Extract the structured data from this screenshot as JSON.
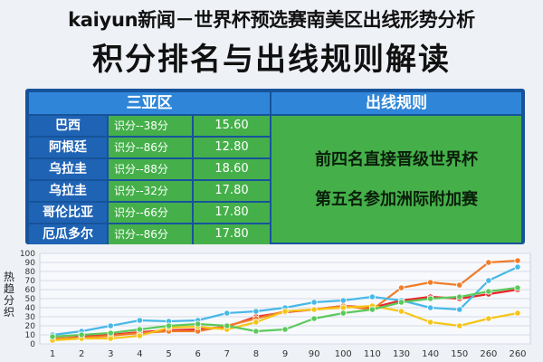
{
  "header": {
    "title_line1": "kaiyun新闻－世界杯预选赛南美区出线形势分析",
    "title_line2": "积分排名与出线规则解读"
  },
  "table": {
    "header": "三亚区",
    "rows": [
      {
        "team": "巴西",
        "points": "识分--38分",
        "value": "15.60"
      },
      {
        "team": "阿根廷",
        "points": "识分--86分",
        "value": "12.80"
      },
      {
        "team": "乌拉圭",
        "points": "识分--88分",
        "value": "18.60"
      },
      {
        "team": "乌拉圭",
        "points": "识分--32分",
        "value": "17.80"
      },
      {
        "team": "哥伦比亚",
        "points": "识分--66分",
        "value": "17.80"
      },
      {
        "team": "厄瓜多尔",
        "points": "识分--86分",
        "value": "17.80"
      }
    ]
  },
  "rules": {
    "header": "出线规则",
    "line1": "前四名直接晋级世界杯",
    "line2": "第五名参加洲际附加赛"
  },
  "chart_data": {
    "type": "line",
    "ylabel": "热趋分织",
    "ylim": [
      0,
      100
    ],
    "yticks": [
      0,
      10,
      20,
      30,
      40,
      50,
      60,
      70,
      80,
      90,
      100
    ],
    "grid": true,
    "categories": [
      "1",
      "2",
      "3",
      "4",
      "5",
      "6",
      "7",
      "8",
      "9",
      "90",
      "100",
      "110",
      "130",
      "140",
      "150",
      "260",
      "260"
    ],
    "series": [
      {
        "color": "#e8262b",
        "values": [
          5,
          8,
          10,
          13,
          15,
          16,
          19,
          30,
          35,
          38,
          42,
          40,
          48,
          52,
          50,
          55,
          60
        ]
      },
      {
        "color": "#f07c2a",
        "values": [
          6,
          7,
          9,
          12,
          14,
          14,
          20,
          28,
          36,
          38,
          42,
          38,
          62,
          68,
          65,
          90,
          92
        ]
      },
      {
        "color": "#48b8e8",
        "values": [
          10,
          14,
          20,
          26,
          25,
          26,
          34,
          36,
          40,
          46,
          48,
          52,
          48,
          40,
          38,
          70,
          85
        ]
      },
      {
        "color": "#f5c518",
        "values": [
          4,
          6,
          6,
          9,
          18,
          19,
          16,
          24,
          36,
          38,
          40,
          42,
          36,
          24,
          20,
          28,
          34
        ]
      },
      {
        "color": "#5cc95c",
        "values": [
          8,
          10,
          12,
          16,
          20,
          22,
          20,
          14,
          16,
          28,
          34,
          38,
          46,
          50,
          52,
          58,
          62
        ]
      }
    ]
  }
}
